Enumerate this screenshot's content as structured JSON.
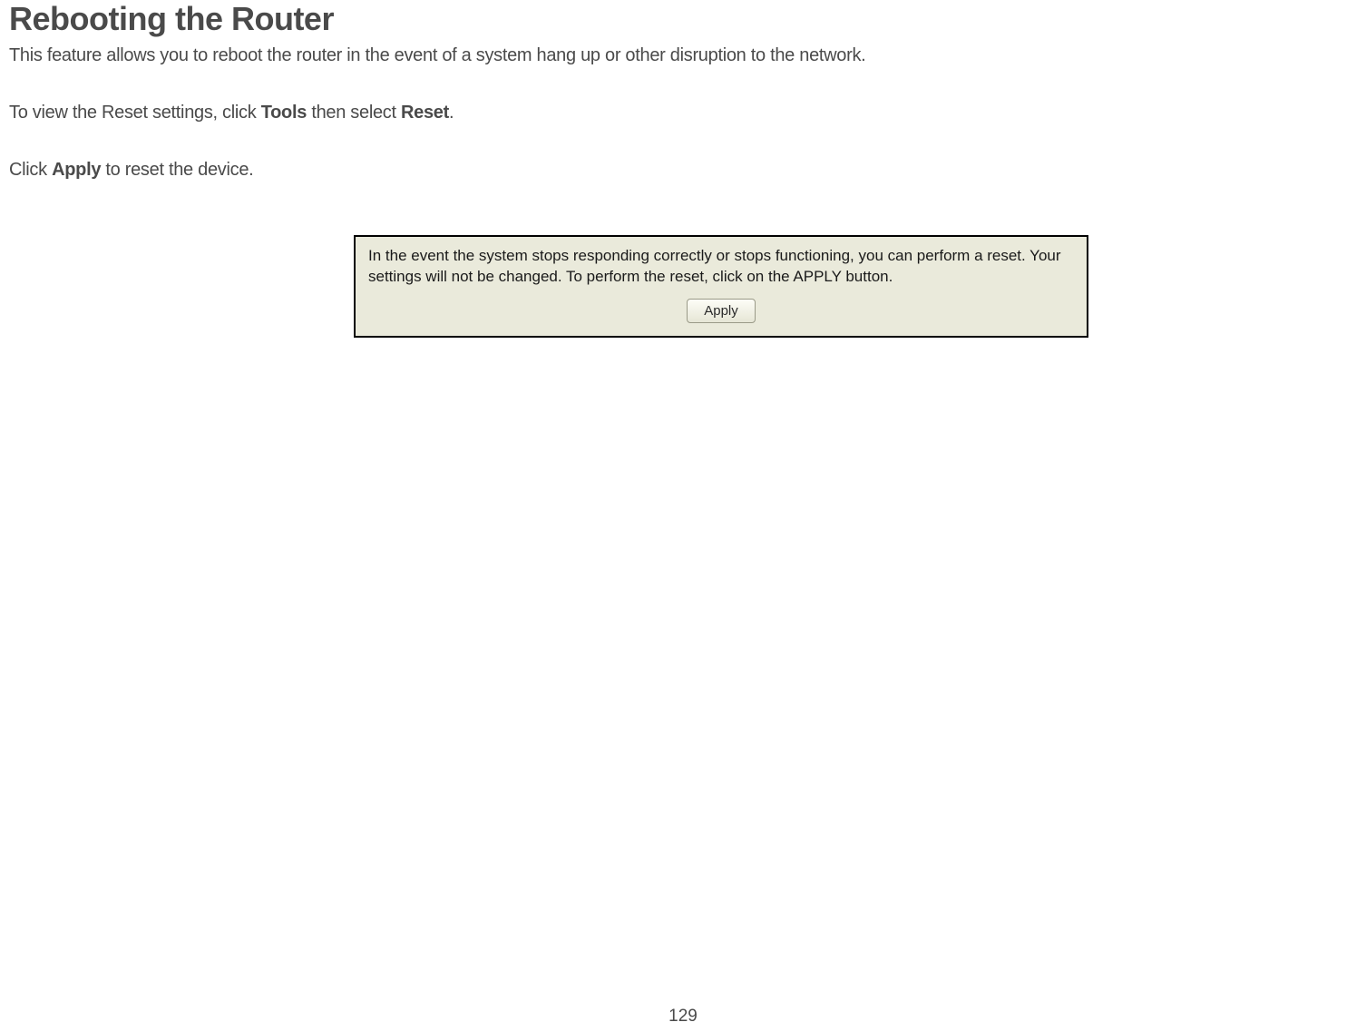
{
  "page": {
    "title": "Rebooting the Router",
    "intro": "This feature allows you to reboot the router in the event of a system hang up or other disruption to the network.",
    "instruction1_pre": "To view the Reset settings, click ",
    "instruction1_bold1": "Tools",
    "instruction1_mid": " then select ",
    "instruction1_bold2": "Reset",
    "instruction1_post": ".",
    "instruction2_pre": "Click ",
    "instruction2_bold": "Apply",
    "instruction2_post": " to reset the device.",
    "page_number": "129"
  },
  "panel": {
    "text": "In the event the system stops responding correctly or stops functioning, you can perform a reset. Your settings will not be changed. To perform the reset, click on the APPLY button.",
    "apply_label": "Apply",
    "background_color": "#eaeadb",
    "border_color": "#000000"
  }
}
